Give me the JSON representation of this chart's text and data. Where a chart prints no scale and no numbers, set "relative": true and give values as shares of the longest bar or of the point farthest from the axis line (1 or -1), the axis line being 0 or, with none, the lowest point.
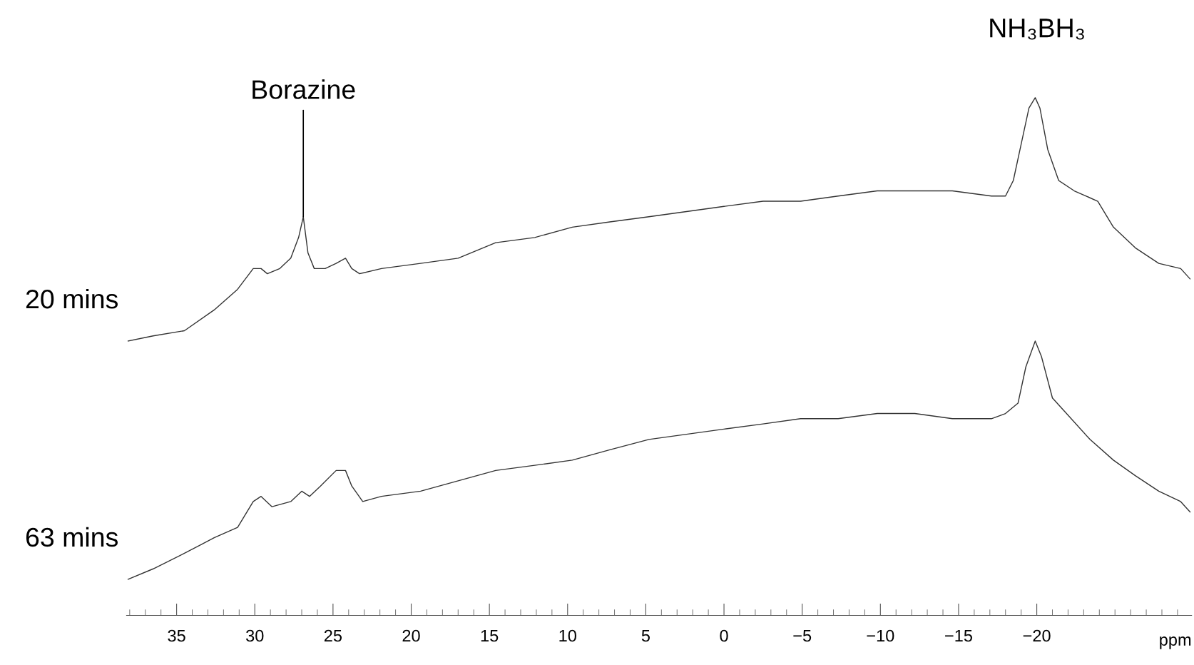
{
  "chart_data": {
    "type": "line",
    "relative": true,
    "xlabel": "ppm",
    "xlim": [
      38.2,
      -29.9
    ],
    "xticks": [
      35,
      30,
      25,
      20,
      15,
      10,
      5,
      0,
      {
        "value": -5,
        "label": "−5"
      },
      {
        "value": -10,
        "label": "−10"
      },
      {
        "value": -15,
        "label": "−15"
      },
      {
        "value": -20,
        "label": "−20"
      }
    ],
    "grid": false,
    "legend": false,
    "marker": "none",
    "line_style": "solid",
    "annotations": [
      {
        "text": "Borazine",
        "x": 26.9,
        "y": 0.77
      },
      {
        "text": "NH₃BH₃",
        "x": -20.0,
        "y": 1.0
      }
    ],
    "series": [
      {
        "name": "20 mins",
        "color": "#333333",
        "x": [
          38.1,
          36.5,
          34.5,
          32.6,
          31.1,
          30.1,
          29.6,
          29.2,
          28.4,
          27.7,
          27.2,
          26.9,
          26.6,
          26.2,
          25.5,
          24.8,
          24.2,
          23.8,
          23.3,
          21.9,
          19.4,
          17.0,
          14.6,
          12.1,
          9.7,
          7.3,
          4.8,
          2.4,
          0.0,
          -2.5,
          -4.9,
          -7.3,
          -9.8,
          -12.2,
          -14.6,
          -17.1,
          -18.0,
          -18.5,
          -19.0,
          -19.5,
          -19.9,
          -20.2,
          -20.7,
          -21.4,
          -22.4,
          -23.9,
          -24.9,
          -26.3,
          -27.8,
          -29.2,
          -29.8
        ],
        "values": [
          0.53,
          0.54,
          0.55,
          0.59,
          0.63,
          0.67,
          0.67,
          0.66,
          0.67,
          0.69,
          0.73,
          0.77,
          0.7,
          0.67,
          0.67,
          0.68,
          0.69,
          0.67,
          0.66,
          0.67,
          0.68,
          0.69,
          0.72,
          0.73,
          0.75,
          0.76,
          0.77,
          0.78,
          0.79,
          0.8,
          0.8,
          0.81,
          0.82,
          0.82,
          0.82,
          0.81,
          0.81,
          0.84,
          0.91,
          0.98,
          1.0,
          0.98,
          0.9,
          0.84,
          0.82,
          0.8,
          0.75,
          0.71,
          0.68,
          0.67,
          0.65
        ]
      },
      {
        "name": "63 mins",
        "color": "#333333",
        "x": [
          38.1,
          36.5,
          34.5,
          32.6,
          31.1,
          30.1,
          29.6,
          28.9,
          27.7,
          27.0,
          26.5,
          25.8,
          24.8,
          24.2,
          23.8,
          23.1,
          21.9,
          19.4,
          17.0,
          14.6,
          12.1,
          9.7,
          7.3,
          4.8,
          2.4,
          0.0,
          -2.5,
          -4.9,
          -7.3,
          -9.8,
          -12.2,
          -14.6,
          -17.1,
          -18.0,
          -18.8,
          -19.3,
          -19.9,
          -20.3,
          -21.0,
          -21.9,
          -23.4,
          -24.9,
          -26.3,
          -27.8,
          -29.2,
          -29.8
        ],
        "values": [
          0.07,
          0.09,
          0.12,
          0.15,
          0.17,
          0.22,
          0.23,
          0.21,
          0.22,
          0.24,
          0.23,
          0.25,
          0.28,
          0.28,
          0.25,
          0.22,
          0.23,
          0.24,
          0.26,
          0.28,
          0.29,
          0.3,
          0.32,
          0.34,
          0.35,
          0.36,
          0.37,
          0.38,
          0.38,
          0.39,
          0.39,
          0.38,
          0.38,
          0.39,
          0.41,
          0.48,
          0.53,
          0.5,
          0.42,
          0.39,
          0.34,
          0.3,
          0.27,
          0.24,
          0.22,
          0.2
        ]
      }
    ]
  }
}
